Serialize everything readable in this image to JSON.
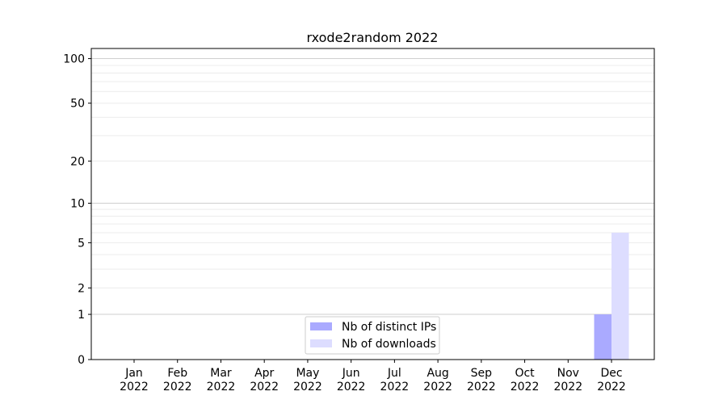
{
  "chart_data": {
    "type": "bar",
    "title": "rxode2random 2022",
    "xlabel": "",
    "ylabel": "",
    "categories": [
      "Jan\n2022",
      "Feb\n2022",
      "Mar\n2022",
      "Apr\n2022",
      "May\n2022",
      "Jun\n2022",
      "Jul\n2022",
      "Aug\n2022",
      "Sep\n2022",
      "Oct\n2022",
      "Nov\n2022",
      "Dec\n2022"
    ],
    "series": [
      {
        "name": "Nb of distinct IPs",
        "color": "#aaaaff",
        "values": [
          0,
          0,
          0,
          0,
          0,
          0,
          0,
          0,
          0,
          0,
          0,
          1
        ]
      },
      {
        "name": "Nb of downloads",
        "color": "#ddddff",
        "values": [
          0,
          0,
          0,
          0,
          0,
          0,
          0,
          0,
          0,
          0,
          0,
          6
        ]
      }
    ],
    "y_scale": "log(1+y)",
    "yticks": [
      0,
      1,
      2,
      5,
      10,
      20,
      50,
      100
    ],
    "ylim": [
      0,
      117
    ],
    "grid": true,
    "legend": "bottom-center"
  }
}
